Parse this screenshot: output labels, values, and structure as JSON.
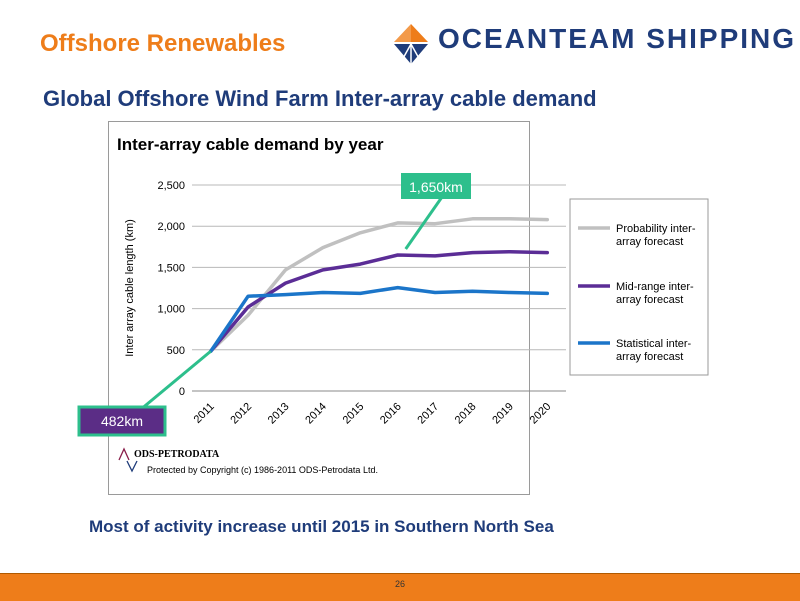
{
  "header": {
    "section_title": "Offshore Renewables",
    "brand_name": "OCEANTEAM SHIPPING"
  },
  "slide": {
    "title": "Global Offshore Wind Farm Inter-array cable demand",
    "footer_text": "Most of activity increase until 2015 in Southern North Sea",
    "page_number": "26"
  },
  "colors": {
    "accent": "#ee7d1a",
    "navy": "#1f3c7a",
    "callout_green": "#2dbf8c",
    "callout_purple": "#5b2d86"
  },
  "chart_data": {
    "type": "line",
    "title": "Inter-array cable demand by year",
    "ylabel": "Inter array cable length (km)",
    "xlabel": "",
    "categories": [
      "2011",
      "2012",
      "2013",
      "2014",
      "2015",
      "2016",
      "2017",
      "2018",
      "2019",
      "2020"
    ],
    "ylim": [
      0,
      2500
    ],
    "yticks": [
      0,
      500,
      1000,
      1500,
      2000,
      2500
    ],
    "ytick_labels": [
      "0",
      "500",
      "1,000",
      "1,500",
      "2,000",
      "2,500"
    ],
    "grid": true,
    "legend_position": "right",
    "series": [
      {
        "name": "Probability inter-array forecast",
        "color": "#c0c0c0",
        "values": [
          482,
          920,
          1470,
          1740,
          1920,
          2040,
          2030,
          2090,
          2090,
          2080
        ]
      },
      {
        "name": "Mid-range inter-array forecast",
        "color": "#5b2d96",
        "values": [
          482,
          1020,
          1310,
          1470,
          1540,
          1650,
          1640,
          1680,
          1690,
          1680
        ]
      },
      {
        "name": "Statistical inter-array forecast",
        "color": "#1b75c9",
        "values": [
          482,
          1150,
          1170,
          1195,
          1185,
          1255,
          1195,
          1210,
          1195,
          1185
        ]
      }
    ],
    "annotations": [
      {
        "text": "1,650km",
        "category": "2016",
        "value": 1650
      },
      {
        "text": "482km",
        "category": "2011",
        "value": 482
      }
    ],
    "source": {
      "logo_text": "ODS-PETRODATA",
      "copyright": "Protected by Copyright (c) 1986-2011  ODS-Petrodata Ltd."
    }
  }
}
